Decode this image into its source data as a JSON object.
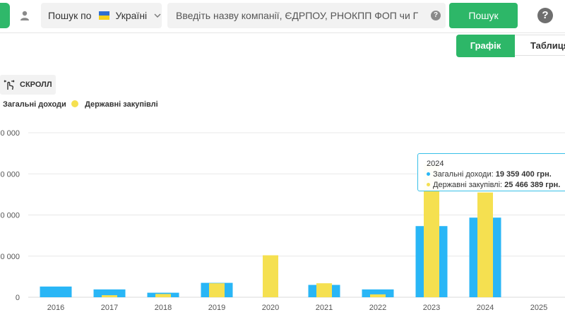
{
  "header": {
    "search_by_label": "Пошук по",
    "country_label": "Україні",
    "search_placeholder": "Введіть назву компанії, ЄДРПОУ, РНОКПП ФОП чи Г",
    "search_button": "Пошук",
    "help_icon_text": "?"
  },
  "tabs": [
    {
      "label": "Графік",
      "active": true
    },
    {
      "label": "Таблиця",
      "active": false
    }
  ],
  "scroll_button": "СКРОЛЛ",
  "colors": {
    "accent": "#2db768",
    "income": "#29b6f6",
    "procurement": "#f5e050"
  },
  "chart_data": {
    "type": "bar",
    "categories": [
      "2016",
      "2017",
      "2018",
      "2019",
      "2020",
      "2021",
      "2022",
      "2023",
      "2024",
      "2025"
    ],
    "series": [
      {
        "name": "Загальні доходи",
        "values": [
          2600000,
          1900000,
          1100000,
          3500000,
          0,
          3000000,
          1900000,
          17300000,
          19359400,
          0
        ]
      },
      {
        "name": "Державні закупівлі",
        "values": [
          0,
          500000,
          800000,
          3400000,
          10200000,
          3400000,
          700000,
          32500000,
          25466389,
          0
        ]
      }
    ],
    "y_tick_labels": [
      "0",
      "0 000",
      "0 000",
      "0 000",
      "0 000"
    ],
    "ylim": [
      0,
      40000000
    ],
    "grid": true,
    "legend_position": "top-left"
  },
  "tooltip": {
    "year": "2024",
    "income_label": "Загальні доходи:",
    "income_value": "19 359 400 грн.",
    "procurement_label": "Державні закупівлі:",
    "procurement_value": "25 466 389 грн."
  }
}
